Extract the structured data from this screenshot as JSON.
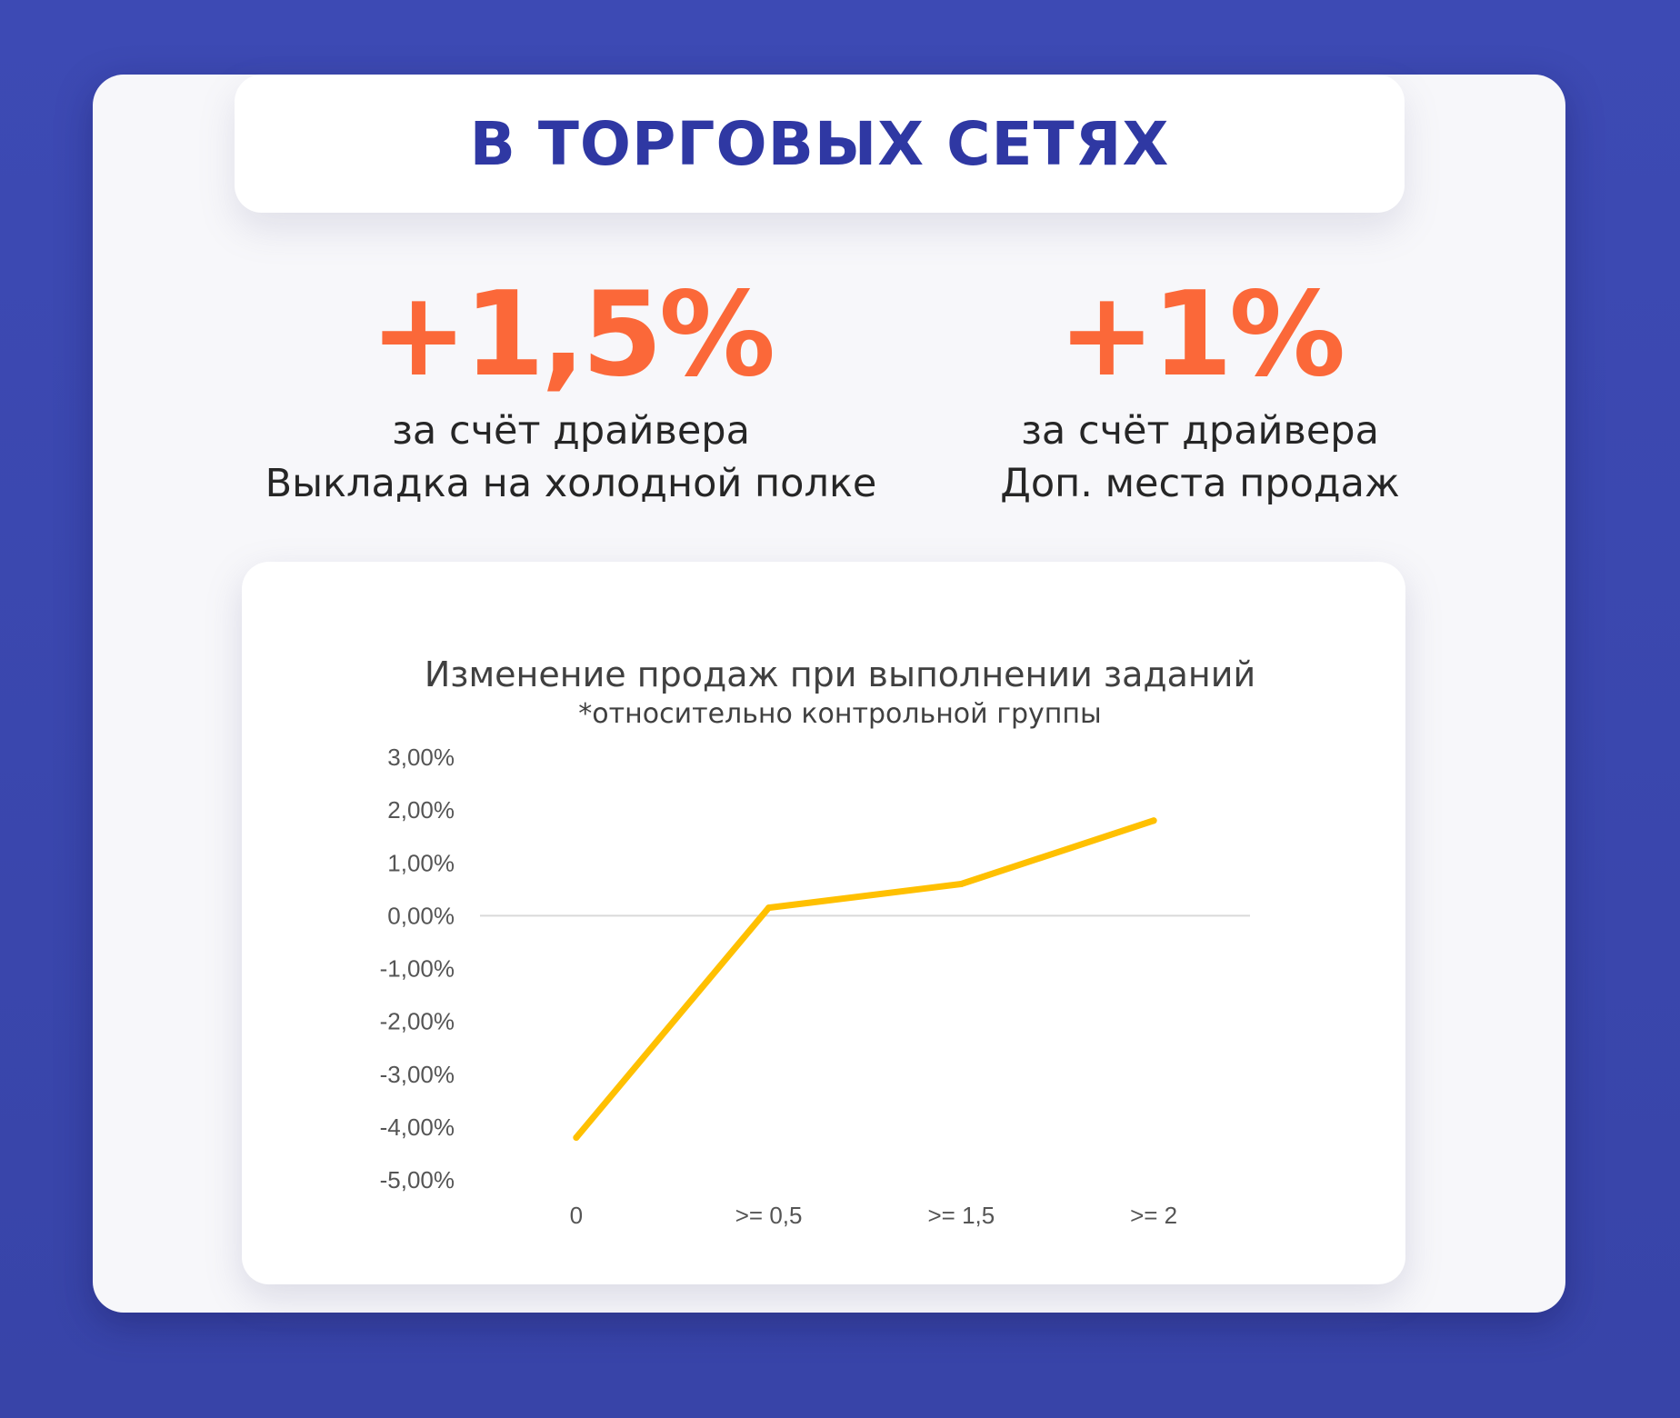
{
  "header": {
    "title": "В ТОРГОВЫХ СЕТЯХ"
  },
  "stats": [
    {
      "value": "+1,5%",
      "line1": "за счёт драйвера",
      "line2": "Выкладка на холодной полке"
    },
    {
      "value": "+1%",
      "line1": "за счёт драйвера",
      "line2": "Доп. места продаж"
    }
  ],
  "colors": {
    "accent": "#fb6839",
    "title": "#2f38a3",
    "line": "#ffc000",
    "background": "#3d4ab4"
  },
  "chart_data": {
    "type": "line",
    "title": "Изменение продаж при выполнении заданий",
    "subtitle": "*относительно контрольной группы",
    "categories": [
      "0",
      ">= 0,5",
      ">= 1,5",
      ">= 2"
    ],
    "series": [
      {
        "values": [
          -4.2,
          0.15,
          0.6,
          1.8
        ],
        "color": "#ffc000"
      }
    ],
    "ylim": [
      -5,
      3
    ],
    "yticks": [
      "3,00%",
      "2,00%",
      "1,00%",
      "0,00%",
      "-1,00%",
      "-2,00%",
      "-3,00%",
      "-4,00%",
      "-5,00%"
    ],
    "ytick_values": [
      3,
      2,
      1,
      0,
      -1,
      -2,
      -3,
      -4,
      -5
    ],
    "grid": false,
    "legend": "none"
  }
}
